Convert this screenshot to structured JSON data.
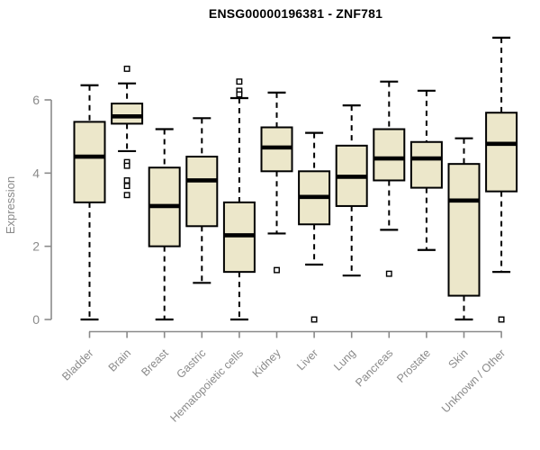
{
  "chart_data": {
    "type": "boxplot",
    "title": "ENSG00000196381 - ZNF781",
    "ylabel": "Expression",
    "xlabel": "",
    "yticks": [
      0,
      2,
      4,
      6
    ],
    "ylim": [
      0,
      7.9
    ],
    "grid": false,
    "legend_position": "none",
    "colors": {
      "box_fill": "#ece7ca",
      "box_edge": "#000000",
      "median": "#000000",
      "axis": "#8a8a8a",
      "text": "#8a8a8a",
      "title": "#000000",
      "background": "#ffffff"
    },
    "categories": [
      "Bladder",
      "Brain",
      "Breast",
      "Gastric",
      "Hematopoietic cells",
      "Kidney",
      "Liver",
      "Lung",
      "Pancreas",
      "Prostate",
      "Skin",
      "Unknown / Other"
    ],
    "boxes": [
      {
        "category": "Bladder",
        "whisker_low": 0.0,
        "q1": 3.2,
        "median": 4.45,
        "q3": 5.4,
        "whisker_high": 6.4,
        "outliers": []
      },
      {
        "category": "Brain",
        "whisker_low": 4.6,
        "q1": 5.35,
        "median": 5.55,
        "q3": 5.9,
        "whisker_high": 6.45,
        "outliers": [
          6.85,
          4.3,
          4.2,
          3.8,
          3.65,
          3.4
        ]
      },
      {
        "category": "Breast",
        "whisker_low": 0.0,
        "q1": 2.0,
        "median": 3.1,
        "q3": 4.15,
        "whisker_high": 5.2,
        "outliers": []
      },
      {
        "category": "Gastric",
        "whisker_low": 1.0,
        "q1": 2.55,
        "median": 3.8,
        "q3": 4.45,
        "whisker_high": 5.5,
        "outliers": []
      },
      {
        "category": "Hematopoietic cells",
        "whisker_low": 0.0,
        "q1": 1.3,
        "median": 2.3,
        "q3": 3.2,
        "whisker_high": 6.05,
        "outliers": [
          6.5,
          6.25,
          6.15
        ]
      },
      {
        "category": "Kidney",
        "whisker_low": 2.35,
        "q1": 4.05,
        "median": 4.7,
        "q3": 5.25,
        "whisker_high": 6.2,
        "outliers": [
          1.35
        ]
      },
      {
        "category": "Liver",
        "whisker_low": 1.5,
        "q1": 2.6,
        "median": 3.35,
        "q3": 4.05,
        "whisker_high": 5.1,
        "outliers": [
          0.0
        ]
      },
      {
        "category": "Lung",
        "whisker_low": 1.2,
        "q1": 3.1,
        "median": 3.9,
        "q3": 4.75,
        "whisker_high": 5.85,
        "outliers": []
      },
      {
        "category": "Pancreas",
        "whisker_low": 2.45,
        "q1": 3.8,
        "median": 4.4,
        "q3": 5.2,
        "whisker_high": 6.5,
        "outliers": [
          1.25
        ]
      },
      {
        "category": "Prostate",
        "whisker_low": 1.9,
        "q1": 3.6,
        "median": 4.4,
        "q3": 4.85,
        "whisker_high": 6.25,
        "outliers": []
      },
      {
        "category": "Skin",
        "whisker_low": 0.0,
        "q1": 0.65,
        "median": 3.25,
        "q3": 4.25,
        "whisker_high": 4.95,
        "outliers": []
      },
      {
        "category": "Unknown / Other",
        "whisker_low": 1.3,
        "q1": 3.5,
        "median": 4.8,
        "q3": 5.65,
        "whisker_high": 7.7,
        "outliers": [
          0.0
        ]
      }
    ]
  }
}
